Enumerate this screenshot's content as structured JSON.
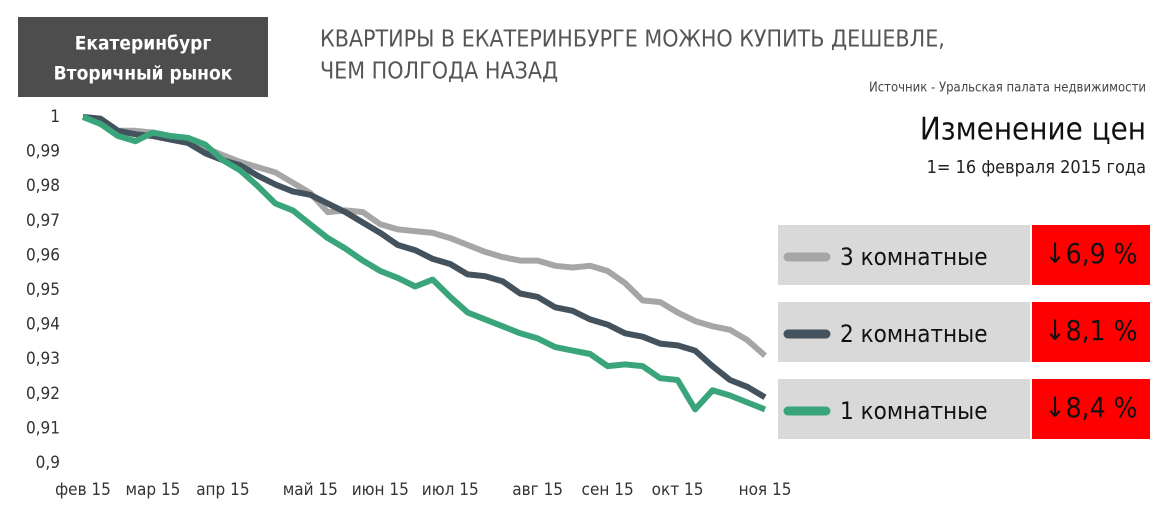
{
  "header": {
    "badge": [
      "Екатеринбург",
      "Вторичный рынок"
    ],
    "title": [
      "КВАРТИРЫ В ЕКАТЕРИНБУРГЕ МОЖНО КУПИТЬ ДЕШЕВЛЕ,",
      "ЧЕМ ПОЛГОДА НАЗАД"
    ],
    "source": "Источник - Уральская палата недвижимости"
  },
  "chart_data": {
    "type": "line",
    "title": "Изменение цен",
    "subtitle": "1= 16 февраля 2015 года",
    "grid": false,
    "categories": [
      "фев 15",
      null,
      null,
      null,
      "мар 15",
      null,
      null,
      null,
      "апр 15",
      null,
      null,
      null,
      null,
      "май 15",
      null,
      null,
      null,
      "июн 15",
      null,
      null,
      null,
      "июл 15",
      null,
      null,
      null,
      null,
      "авг 15",
      null,
      null,
      null,
      "сен 15",
      null,
      null,
      null,
      "окт 15",
      null,
      null,
      null,
      null,
      "ноя 15"
    ],
    "ylim": [
      0.9,
      1
    ],
    "yticks": [
      1,
      {
        "value": 0.99,
        "label": "0,99"
      },
      {
        "value": 0.98,
        "label": "0,98"
      },
      {
        "value": 0.97,
        "label": "0,97"
      },
      {
        "value": 0.96,
        "label": "0,96"
      },
      {
        "value": 0.95,
        "label": "0,95"
      },
      {
        "value": 0.94,
        "label": "0,94"
      },
      {
        "value": 0.93,
        "label": "0,93"
      },
      {
        "value": 0.92,
        "label": "0,92"
      },
      {
        "value": 0.91,
        "label": "0,91"
      },
      {
        "value": 0.9,
        "label": "0,9"
      }
    ],
    "series": [
      {
        "name": "3 комнатные",
        "change": "↓6,9 %",
        "color": "#a6a6a6",
        "values": [
          1,
          0.9995,
          0.996,
          0.996,
          0.9955,
          0.994,
          0.993,
          0.991,
          0.989,
          0.987,
          0.9855,
          0.984,
          0.981,
          0.978,
          0.9725,
          0.973,
          0.9725,
          0.969,
          0.9675,
          0.967,
          0.9665,
          0.965,
          0.963,
          0.961,
          0.9595,
          0.9585,
          0.9585,
          0.957,
          0.9565,
          0.957,
          0.9555,
          0.952,
          0.947,
          0.9465,
          0.9435,
          0.941,
          0.9395,
          0.9385,
          0.9355,
          0.931
        ]
      },
      {
        "name": "2 комнатные",
        "change": "↓8,1 %",
        "color": "#44525e",
        "values": [
          1,
          0.9995,
          0.996,
          0.995,
          0.9945,
          0.9935,
          0.9925,
          0.9895,
          0.9875,
          0.986,
          0.983,
          0.9805,
          0.9785,
          0.9775,
          0.975,
          0.9725,
          0.9695,
          0.9665,
          0.963,
          0.9615,
          0.959,
          0.9575,
          0.9545,
          0.954,
          0.9525,
          0.949,
          0.948,
          0.945,
          0.944,
          0.9415,
          0.94,
          0.9375,
          0.9365,
          0.9345,
          0.934,
          0.9325,
          0.928,
          0.924,
          0.922,
          0.919
        ]
      },
      {
        "name": "1 комнатные",
        "change": "↓8,4 %",
        "color": "#3aa57a",
        "values": [
          1,
          0.998,
          0.9945,
          0.993,
          0.9955,
          0.9945,
          0.994,
          0.992,
          0.9875,
          0.9845,
          0.98,
          0.975,
          0.973,
          0.969,
          0.965,
          0.962,
          0.9585,
          0.9555,
          0.9535,
          0.951,
          0.953,
          0.948,
          0.9435,
          0.9415,
          0.9395,
          0.9375,
          0.936,
          0.9335,
          0.9325,
          0.9315,
          0.928,
          0.9285,
          0.928,
          0.9245,
          0.924,
          0.9155,
          0.921,
          0.9195,
          0.9175,
          0.9155
        ]
      }
    ]
  }
}
